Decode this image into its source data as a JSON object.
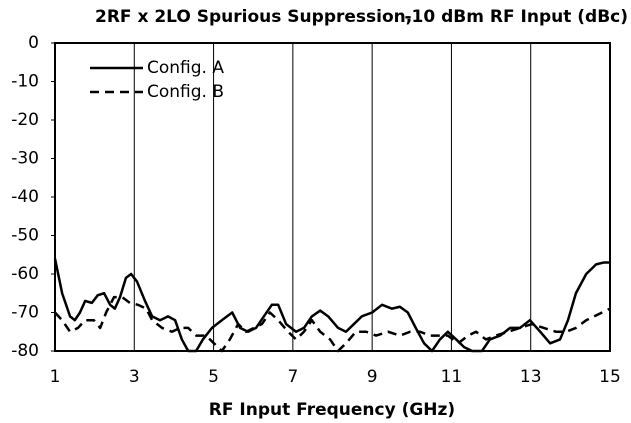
{
  "chart_data": {
    "type": "line",
    "title": "2RF x 2LO Spurious Suppression,",
    "subtitle": "-10 dBm RF Input (dBc)",
    "xlabel": "RF Input Frequency (GHz)",
    "xlim": [
      1,
      15
    ],
    "xticks": [
      1,
      3,
      5,
      7,
      9,
      11,
      13,
      15
    ],
    "ylim": [
      -80,
      0
    ],
    "yticks": [
      0,
      -10,
      -20,
      -30,
      -40,
      -50,
      -60,
      -70,
      -80
    ],
    "grid": "x",
    "legend": "upper left",
    "series": [
      {
        "name": "Config. A",
        "color": "#000000",
        "dash": false,
        "x": [
          1.0,
          1.18,
          1.38,
          1.5,
          1.63,
          1.76,
          1.93,
          2.08,
          2.24,
          2.39,
          2.51,
          2.64,
          2.79,
          2.92,
          3.07,
          3.27,
          3.45,
          3.65,
          3.85,
          4.03,
          4.2,
          4.36,
          4.56,
          4.73,
          4.96,
          5.21,
          5.47,
          5.67,
          5.87,
          6.07,
          6.27,
          6.47,
          6.63,
          6.83,
          7.08,
          7.28,
          7.48,
          7.69,
          7.89,
          8.14,
          8.34,
          8.54,
          8.74,
          9.0,
          9.25,
          9.5,
          9.7,
          9.9,
          10.1,
          10.31,
          10.51,
          10.71,
          10.91,
          11.12,
          11.32,
          11.52,
          11.77,
          11.97,
          12.23,
          12.48,
          12.73,
          12.98,
          13.24,
          13.49,
          13.74,
          13.94,
          14.14,
          14.4,
          14.65,
          14.85,
          15.0
        ],
        "values": [
          -56,
          -65,
          -71,
          -72,
          -70,
          -67,
          -67.5,
          -65.5,
          -65,
          -68,
          -69,
          -66,
          -61,
          -60,
          -62,
          -67,
          -71,
          -72,
          -71,
          -72,
          -77,
          -80,
          -80,
          -77,
          -74,
          -72,
          -70,
          -74,
          -75,
          -74,
          -71,
          -68,
          -68,
          -73,
          -75,
          -74,
          -71,
          -69.5,
          -71,
          -74,
          -75,
          -73,
          -71,
          -70,
          -68,
          -69,
          -68.5,
          -70,
          -74,
          -78,
          -80,
          -77,
          -75,
          -77,
          -79,
          -80,
          -80,
          -77,
          -76,
          -74,
          -74,
          -72,
          -75,
          -78,
          -77,
          -72,
          -65,
          -60,
          -57.5,
          -57,
          -57
        ]
      },
      {
        "name": "Config. B",
        "color": "#000000",
        "dash": true,
        "x": [
          1.0,
          1.18,
          1.38,
          1.58,
          1.76,
          1.98,
          2.14,
          2.29,
          2.49,
          2.69,
          2.89,
          3.09,
          3.3,
          3.45,
          3.7,
          3.95,
          4.15,
          4.36,
          4.56,
          4.81,
          5.01,
          5.21,
          5.41,
          5.62,
          5.82,
          6.02,
          6.22,
          6.42,
          6.63,
          6.88,
          7.08,
          7.28,
          7.48,
          7.69,
          7.94,
          8.14,
          8.34,
          8.59,
          8.85,
          9.1,
          9.4,
          9.7,
          9.96,
          10.21,
          10.46,
          10.71,
          10.91,
          11.17,
          11.42,
          11.62,
          11.87,
          12.12,
          12.43,
          12.73,
          13.03,
          13.33,
          13.64,
          13.89,
          14.14,
          14.4,
          14.6,
          14.8,
          15.0
        ],
        "values": [
          -70,
          -72,
          -75,
          -74,
          -72,
          -72,
          -74,
          -70,
          -66,
          -66,
          -67.5,
          -68,
          -69,
          -72,
          -74,
          -75,
          -74,
          -74,
          -76,
          -76,
          -78,
          -80,
          -77,
          -73,
          -75,
          -74,
          -73,
          -70,
          -72,
          -75,
          -77,
          -75,
          -72,
          -75,
          -77,
          -80,
          -78,
          -75,
          -75,
          -76,
          -75,
          -76,
          -75,
          -75,
          -76,
          -76,
          -76,
          -78,
          -76,
          -75,
          -77,
          -76,
          -75,
          -74,
          -73,
          -74,
          -75,
          -75,
          -74,
          -72,
          -71,
          -70,
          -69
        ]
      }
    ]
  }
}
